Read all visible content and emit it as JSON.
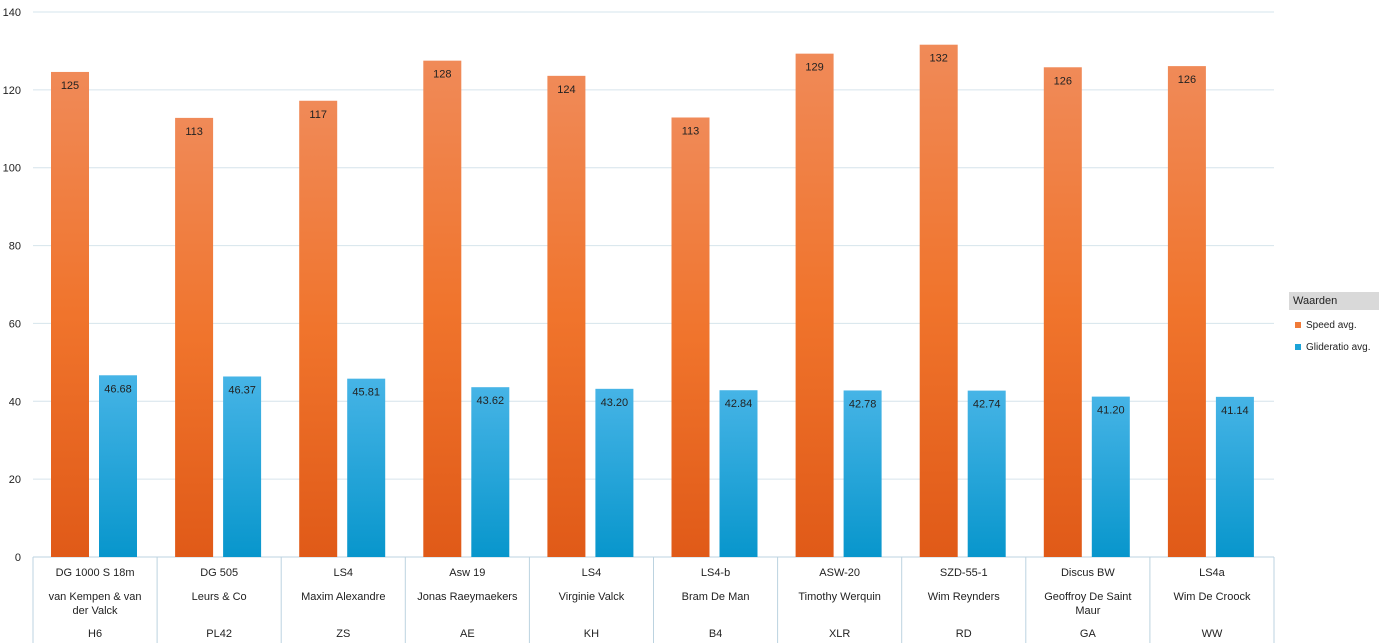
{
  "chart_data": {
    "type": "bar",
    "title": "",
    "xlabel": "",
    "ylabel": "",
    "ylim": [
      0,
      140
    ],
    "yticks": [
      0,
      20,
      40,
      60,
      80,
      100,
      120,
      140
    ],
    "grid": true,
    "legend_placement": "right",
    "legend_title": "Waarden",
    "categories": [
      {
        "glider": "DG 1000 S 18m",
        "pilot": "van Kempen & van der Valck",
        "callsign": "H6"
      },
      {
        "glider": "DG 505",
        "pilot": "Leurs & Co",
        "callsign": "PL42"
      },
      {
        "glider": "LS4",
        "pilot": "Maxim Alexandre",
        "callsign": "ZS"
      },
      {
        "glider": "Asw 19",
        "pilot": "Jonas Raeymaekers",
        "callsign": "AE"
      },
      {
        "glider": "LS4",
        "pilot": "Virginie Valck",
        "callsign": "KH"
      },
      {
        "glider": "LS4-b",
        "pilot": "Bram De Man",
        "callsign": "B4"
      },
      {
        "glider": "ASW-20",
        "pilot": "Timothy Werquin",
        "callsign": "XLR"
      },
      {
        "glider": "SZD-55-1",
        "pilot": "Wim Reynders",
        "callsign": "RD"
      },
      {
        "glider": "Discus BW",
        "pilot": "Geoffroy De Saint Maur",
        "callsign": "GA"
      },
      {
        "glider": "LS4a",
        "pilot": "Wim De Croock",
        "callsign": "WW"
      }
    ],
    "series": [
      {
        "name": "Speed avg.",
        "color": "#f07a38",
        "values": [
          124.6,
          112.8,
          117.2,
          127.5,
          123.6,
          112.9,
          129.3,
          131.6,
          125.8,
          126.1
        ],
        "labels": [
          "125",
          "113",
          "117",
          "128",
          "124",
          "113",
          "129",
          "132",
          "126",
          "126"
        ]
      },
      {
        "name": "Glideratio avg.",
        "color": "#1ba3d8",
        "values": [
          46.68,
          46.37,
          45.81,
          43.62,
          43.2,
          42.84,
          42.78,
          42.74,
          41.2,
          41.14
        ],
        "labels": [
          "46.68",
          "46.37",
          "45.81",
          "43.62",
          "43.20",
          "42.84",
          "42.78",
          "42.74",
          "41.20",
          "41.14"
        ]
      }
    ]
  }
}
